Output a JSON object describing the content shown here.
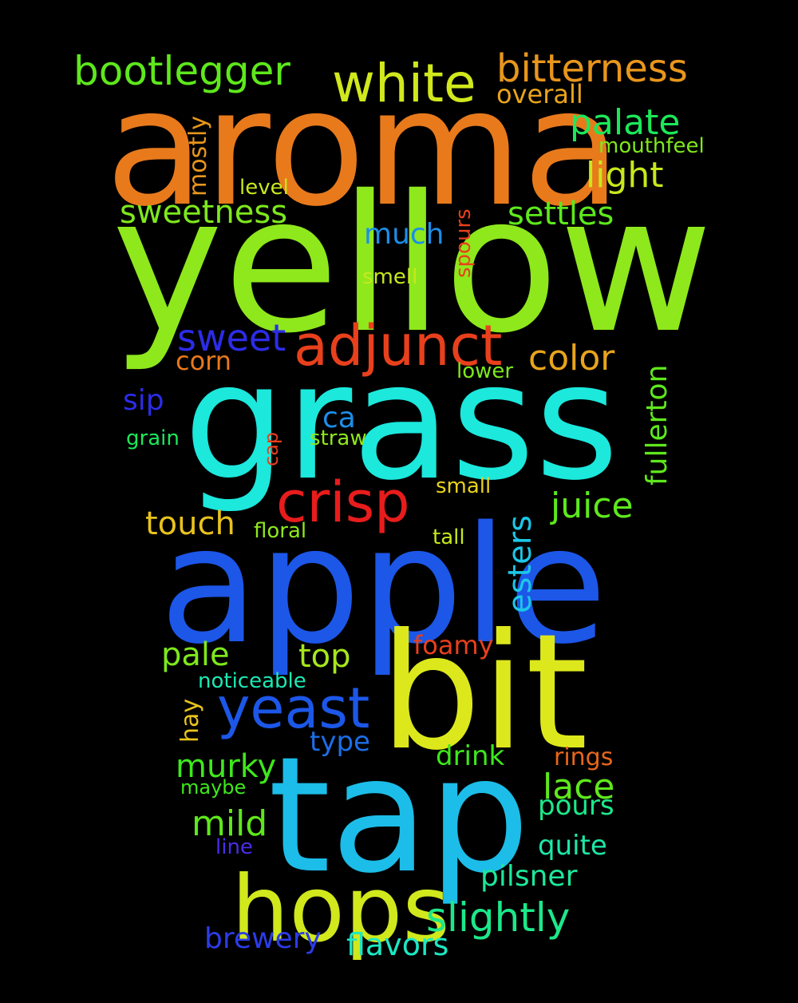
{
  "words": [
    {
      "id": "aroma",
      "text": "aroma",
      "color": "#e87a1c",
      "vertical": false
    },
    {
      "id": "yellow",
      "text": "yellow",
      "color": "#8ee81c",
      "vertical": false
    },
    {
      "id": "grass",
      "text": "grass",
      "color": "#1ce8dc",
      "vertical": false
    },
    {
      "id": "apple",
      "text": "apple",
      "color": "#1c57e8",
      "vertical": false
    },
    {
      "id": "bit",
      "text": "bit",
      "color": "#dde81c",
      "vertical": false
    },
    {
      "id": "tap",
      "text": "tap",
      "color": "#1cbde8",
      "vertical": false
    },
    {
      "id": "hops",
      "text": "hops",
      "color": "#d0e81c",
      "vertical": false
    },
    {
      "id": "adjunct",
      "text": "adjunct",
      "color": "#e8401c",
      "vertical": false
    },
    {
      "id": "crisp",
      "text": "crisp",
      "color": "#e81c1c",
      "vertical": false
    },
    {
      "id": "yeast",
      "text": "yeast",
      "color": "#1c57e8",
      "vertical": false
    },
    {
      "id": "white",
      "text": "white",
      "color": "#d0e81c",
      "vertical": false
    },
    {
      "id": "bootlegger",
      "text": "bootlegger",
      "color": "#5ee81c",
      "vertical": false
    },
    {
      "id": "bitterness",
      "text": "bitterness",
      "color": "#e8961c",
      "vertical": false
    },
    {
      "id": "slightly",
      "text": "slightly",
      "color": "#1ce88a",
      "vertical": false
    },
    {
      "id": "palate",
      "text": "palate",
      "color": "#1ce85a",
      "vertical": false
    },
    {
      "id": "light",
      "text": "light",
      "color": "#c7e81c",
      "vertical": false
    },
    {
      "id": "sweetness",
      "text": "sweetness",
      "color": "#7ee81c",
      "vertical": false
    },
    {
      "id": "settles",
      "text": "settles",
      "color": "#5ee81c",
      "vertical": false
    },
    {
      "id": "sweet",
      "text": "sweet",
      "color": "#2c2ce8",
      "vertical": false
    },
    {
      "id": "color",
      "text": "color",
      "color": "#e8a41c",
      "vertical": false
    },
    {
      "id": "juice",
      "text": "juice",
      "color": "#5ee81c",
      "vertical": false
    },
    {
      "id": "esters",
      "text": "esters",
      "color": "#1cc7e8",
      "vertical": true
    },
    {
      "id": "fullerton",
      "text": "fullerton",
      "color": "#5ee81c",
      "vertical": true
    },
    {
      "id": "much",
      "text": "much",
      "color": "#1c8ee8",
      "vertical": false
    },
    {
      "id": "touch",
      "text": "touch",
      "color": "#e8c31c",
      "vertical": false
    },
    {
      "id": "pale",
      "text": "pale",
      "color": "#7ee81c",
      "vertical": false
    },
    {
      "id": "top",
      "text": "top",
      "color": "#a6e81c",
      "vertical": false
    },
    {
      "id": "murky",
      "text": "murky",
      "color": "#3ee81c",
      "vertical": false
    },
    {
      "id": "mild",
      "text": "mild",
      "color": "#5ee81c",
      "vertical": false
    },
    {
      "id": "lace",
      "text": "lace",
      "color": "#5ee81c",
      "vertical": false
    },
    {
      "id": "pours",
      "text": "pours",
      "color": "#1ce88a",
      "vertical": false
    },
    {
      "id": "quite",
      "text": "quite",
      "color": "#1ce8a8",
      "vertical": false
    },
    {
      "id": "pilsner",
      "text": "pilsner",
      "color": "#1ce89a",
      "vertical": false
    },
    {
      "id": "flavors",
      "text": "flavors",
      "color": "#1ce8c3",
      "vertical": false
    },
    {
      "id": "brewery",
      "text": "brewery",
      "color": "#2c3ce8",
      "vertical": false
    },
    {
      "id": "drink",
      "text": "drink",
      "color": "#3ee81c",
      "vertical": false
    },
    {
      "id": "type",
      "text": "type",
      "color": "#1c6ee8",
      "vertical": false
    },
    {
      "id": "sip",
      "text": "sip",
      "color": "#2c2ce8",
      "vertical": false
    },
    {
      "id": "ca",
      "text": "ca",
      "color": "#1c8ee8",
      "vertical": false
    },
    {
      "id": "corn",
      "text": "corn",
      "color": "#e8781c",
      "vertical": false
    },
    {
      "id": "mostly",
      "text": "mostly",
      "color": "#e8961c",
      "vertical": true
    },
    {
      "id": "overall",
      "text": "overall",
      "color": "#e8a41c",
      "vertical": false
    },
    {
      "id": "foamy",
      "text": "foamy",
      "color": "#e8401c",
      "vertical": false
    },
    {
      "id": "rings",
      "text": "rings",
      "color": "#e8661c",
      "vertical": false
    },
    {
      "id": "hay",
      "text": "hay",
      "color": "#e8c31c",
      "vertical": true
    },
    {
      "id": "spours",
      "text": "spours",
      "color": "#e8401c",
      "vertical": true
    },
    {
      "id": "cap",
      "text": "cap",
      "color": "#e8401c",
      "vertical": true
    },
    {
      "id": "mouthfeel",
      "text": "mouthfeel",
      "color": "#7ee81c",
      "vertical": false
    },
    {
      "id": "level",
      "text": "level",
      "color": "#c7e81c",
      "vertical": false
    },
    {
      "id": "smell",
      "text": "smell",
      "color": "#c7e81c",
      "vertical": false
    },
    {
      "id": "lower",
      "text": "lower",
      "color": "#7ee81c",
      "vertical": false
    },
    {
      "id": "grain",
      "text": "grain",
      "color": "#1ce85a",
      "vertical": false
    },
    {
      "id": "straw",
      "text": "straw",
      "color": "#8ee81c",
      "vertical": false
    },
    {
      "id": "small",
      "text": "small",
      "color": "#e8d21c",
      "vertical": false
    },
    {
      "id": "floral",
      "text": "floral",
      "color": "#8ee81c",
      "vertical": false
    },
    {
      "id": "tall",
      "text": "tall",
      "color": "#c7e81c",
      "vertical": false
    },
    {
      "id": "noticeable",
      "text": "noticeable",
      "color": "#1ce8b4",
      "vertical": false
    },
    {
      "id": "maybe",
      "text": "maybe",
      "color": "#3ee81c",
      "vertical": false
    },
    {
      "id": "line",
      "text": "line",
      "color": "#4c2ce8",
      "vertical": false
    }
  ]
}
